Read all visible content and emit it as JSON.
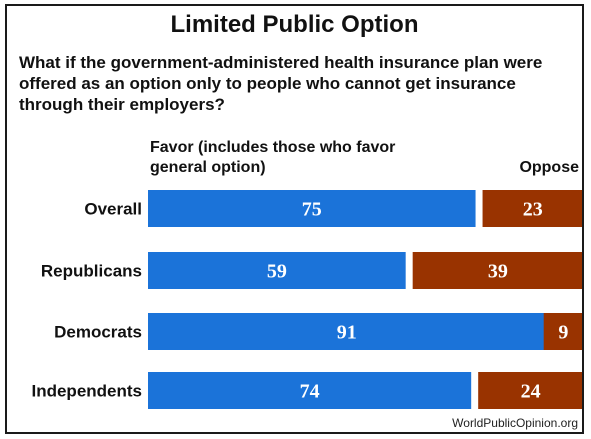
{
  "chart_data": {
    "type": "bar",
    "stacked": true,
    "orientation": "horizontal",
    "title": "Limited Public Option",
    "subtitle": "What if the government-administered health insurance plan were offered as an option only to people who cannot get insurance through their employers?",
    "categories": [
      "Overall",
      "Republicans",
      "Democrats",
      "Independents"
    ],
    "series": [
      {
        "name": "Favor (includes those who favor general option)",
        "values": [
          75,
          59,
          91,
          74
        ],
        "color": "#1b73d9"
      },
      {
        "name": "Oppose",
        "values": [
          23,
          39,
          9,
          24
        ],
        "color": "#993300"
      }
    ],
    "legend": "top",
    "grid": false
  },
  "source": "WorldPublicOpinion.org"
}
